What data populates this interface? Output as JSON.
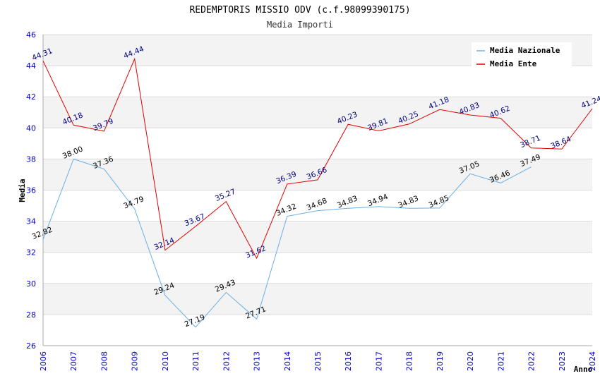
{
  "chart_data": {
    "type": "line",
    "title": "REDEMPTORIS MISSIO ODV (c.f.98099390175)",
    "subtitle": "Media Importi",
    "xlabel": "Anno",
    "ylabel": "Media",
    "ylim": [
      26,
      46
    ],
    "yticks": [
      "26",
      "28",
      "30",
      "32",
      "34",
      "36",
      "38",
      "40",
      "42",
      "44",
      "46"
    ],
    "categories": [
      "2006",
      "2007",
      "2008",
      "2009",
      "2010",
      "2011",
      "2012",
      "2013",
      "2014",
      "2015",
      "2016",
      "2017",
      "2018",
      "2019",
      "2020",
      "2021",
      "2022",
      "2023",
      "2024"
    ],
    "series": [
      {
        "name": "Media Nazionale",
        "color": "#6aaee6",
        "values": [
          32.82,
          38.0,
          37.36,
          34.79,
          29.24,
          27.19,
          29.43,
          27.71,
          34.32,
          34.68,
          34.83,
          34.94,
          34.83,
          34.85,
          37.05,
          36.46,
          37.49,
          null,
          null
        ],
        "labels": [
          "32.82",
          "38.00",
          "37.36",
          "34.79",
          "29.24",
          "27.19",
          "29.43",
          "27.71",
          "34.32",
          "34.68",
          "34.83",
          "34.94",
          "34.83",
          "34.85",
          "37.05",
          "36.46",
          "37.49",
          null,
          null
        ]
      },
      {
        "name": "Media Ente",
        "color": "#e00000",
        "values": [
          44.31,
          40.18,
          39.79,
          44.44,
          32.14,
          33.67,
          35.27,
          31.62,
          36.39,
          36.66,
          40.23,
          39.81,
          40.25,
          41.18,
          40.83,
          40.62,
          38.71,
          38.64,
          41.24
        ],
        "labels": [
          "44.31",
          "40.18",
          "39.79",
          "44.44",
          "32.14",
          "33.67",
          "35.27",
          "31.62",
          "36.39",
          "36.66",
          "40.23",
          "39.81",
          "40.25",
          "41.18",
          "40.83",
          "40.62",
          "38.71",
          "38.64",
          "41.24"
        ]
      }
    ],
    "legend_position": "top-right",
    "grid": true
  }
}
